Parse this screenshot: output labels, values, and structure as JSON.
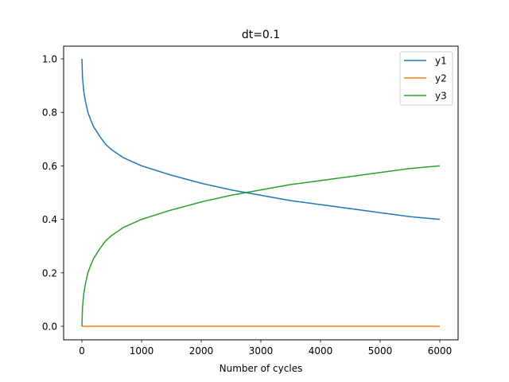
{
  "chart_data": {
    "type": "line",
    "title": "dt=0.1",
    "xlabel": "Number of cycles",
    "ylabel": "",
    "xlim": [
      -300,
      6300
    ],
    "ylim": [
      -0.05,
      1.05
    ],
    "xticks": [
      0,
      1000,
      2000,
      3000,
      4000,
      5000,
      6000
    ],
    "xtick_labels": [
      "0",
      "1000",
      "2000",
      "3000",
      "4000",
      "5000",
      "6000"
    ],
    "yticks": [
      0.0,
      0.2,
      0.4,
      0.6,
      0.8,
      1.0
    ],
    "ytick_labels": [
      "0.0",
      "0.2",
      "0.4",
      "0.6",
      "0.8",
      "1.0"
    ],
    "grid": false,
    "legend_position": "upper right",
    "x": [
      0,
      10,
      30,
      60,
      100,
      150,
      200,
      300,
      400,
      500,
      700,
      1000,
      1500,
      2000,
      2500,
      3000,
      3500,
      4000,
      4500,
      5000,
      5500,
      6000
    ],
    "series": [
      {
        "name": "y1",
        "color": "#1f77b4",
        "values": [
          1.0,
          0.93,
          0.88,
          0.84,
          0.8,
          0.77,
          0.745,
          0.71,
          0.68,
          0.66,
          0.63,
          0.6,
          0.565,
          0.535,
          0.51,
          0.49,
          0.47,
          0.455,
          0.44,
          0.425,
          0.41,
          0.4
        ]
      },
      {
        "name": "y2",
        "color": "#ff7f0e",
        "values": [
          0,
          0,
          0,
          0,
          0,
          0,
          0,
          0,
          0,
          0,
          0,
          0,
          0,
          0,
          0,
          0,
          0,
          0,
          0,
          0,
          0,
          0
        ]
      },
      {
        "name": "y3",
        "color": "#2ca02c",
        "values": [
          0.0,
          0.07,
          0.12,
          0.16,
          0.2,
          0.23,
          0.255,
          0.29,
          0.32,
          0.34,
          0.37,
          0.4,
          0.435,
          0.465,
          0.49,
          0.51,
          0.53,
          0.545,
          0.56,
          0.575,
          0.59,
          0.6
        ]
      }
    ]
  }
}
